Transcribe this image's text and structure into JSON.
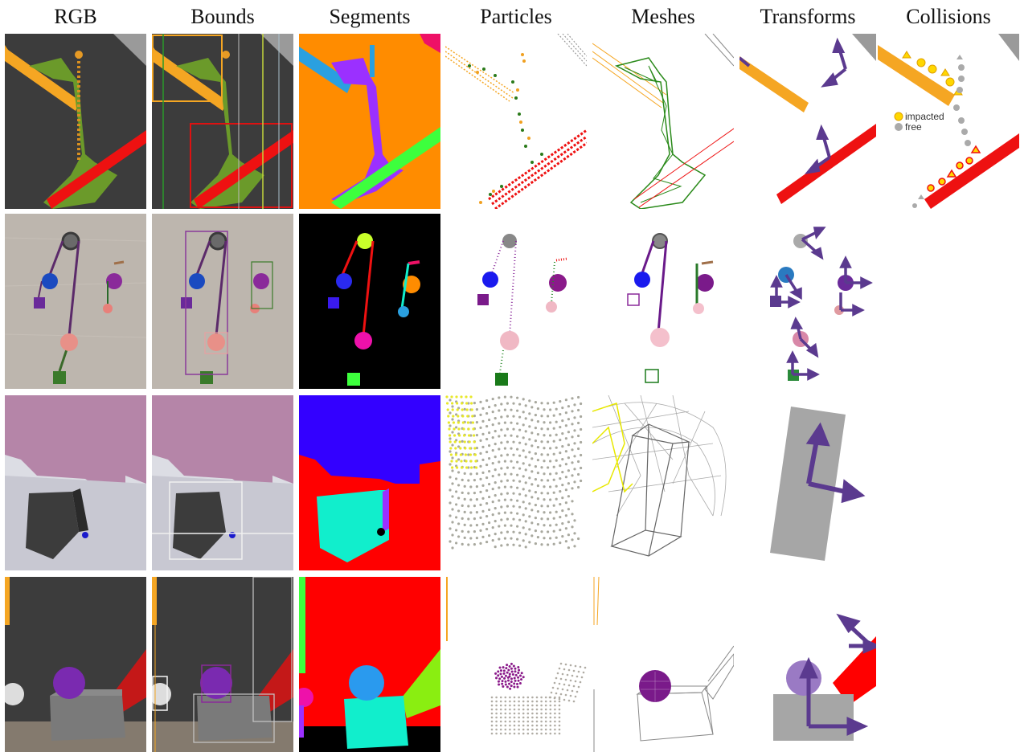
{
  "columns": [
    "RGB",
    "Bounds",
    "Segments",
    "Particles",
    "Meshes",
    "Transforms",
    "Collisions"
  ],
  "collision_legend": {
    "impacted": "impacted",
    "free": "free"
  },
  "colors": {
    "ramp_orange": "#f5a623",
    "ramp_red": "#ee1111",
    "fluid_green": "#6b9a2a",
    "segment_orange": "#ff8c00",
    "segment_purple": "#9b30ff",
    "segment_blue": "#2aa0e0",
    "segment_pink": "#ee1166",
    "segment_green": "#3dff3d",
    "arrow_purple": "#5b3a8f",
    "cloth_pink": "#b585a8",
    "segment_cyan": "#11eecc",
    "segment_indigo": "#3300ff",
    "segment_red": "#ff0000",
    "sphere_purple": "#6b1fa0",
    "impacted_yellow": "#ffd700",
    "free_gray": "#aaaaaa"
  }
}
